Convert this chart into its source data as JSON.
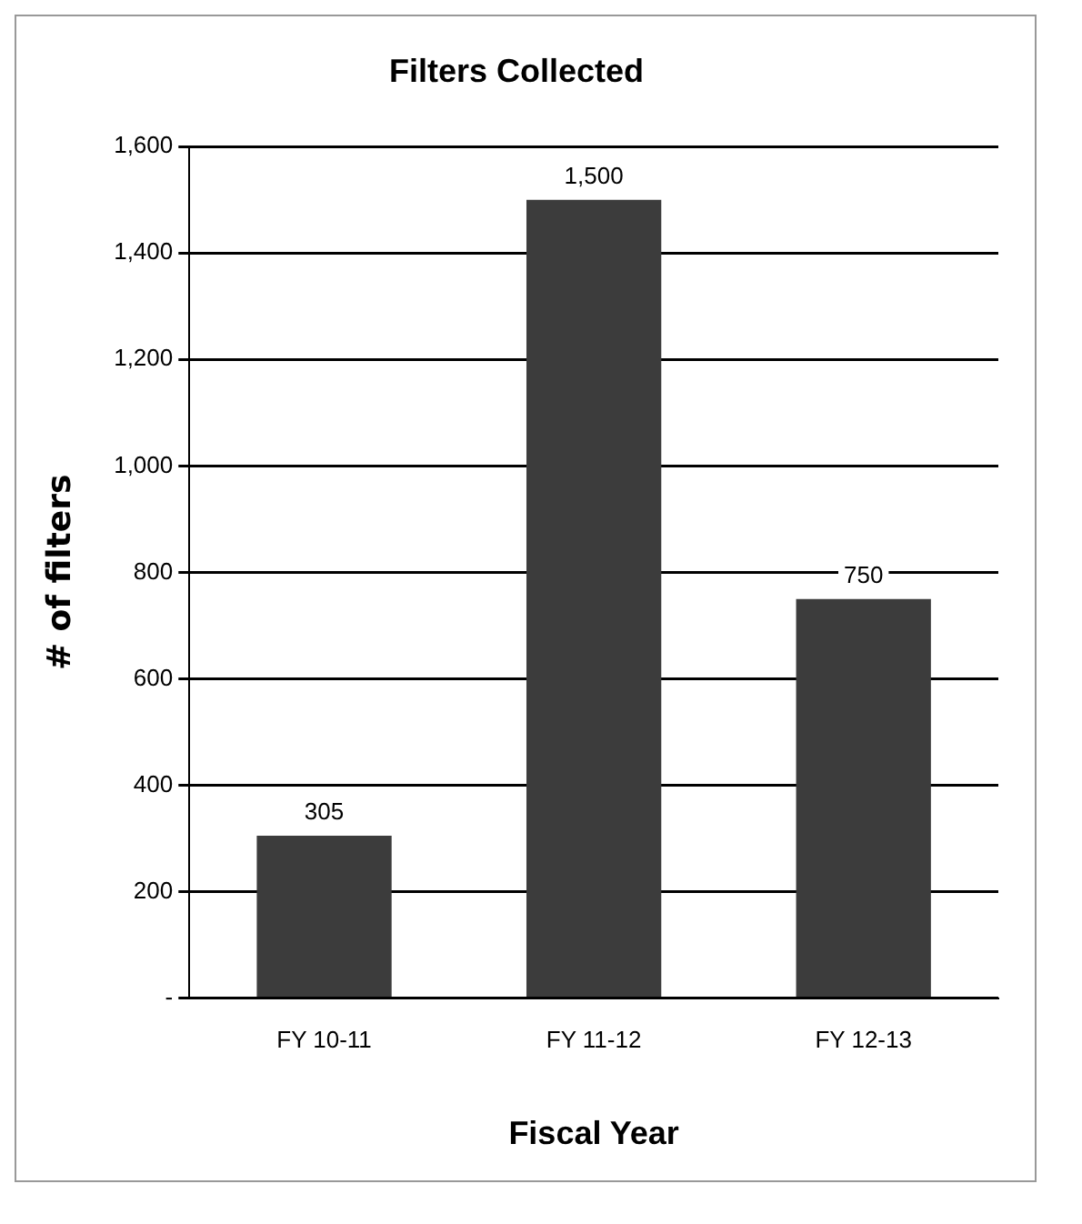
{
  "chart_data": {
    "type": "bar",
    "title": "Filters Collected",
    "xlabel": "Fiscal Year",
    "ylabel": "# of filters",
    "categories": [
      "FY 10-11",
      "FY 11-12",
      "FY 12-13"
    ],
    "values": [
      305,
      1500,
      750
    ],
    "value_labels": [
      "305",
      "1,500",
      "750"
    ],
    "color": "#3c3c3c",
    "ylim": [
      0,
      1600
    ],
    "yticks": [
      {
        "value": 0,
        "label": "-"
      },
      {
        "value": 200,
        "label": "200"
      },
      {
        "value": 400,
        "label": "400"
      },
      {
        "value": 600,
        "label": "600"
      },
      {
        "value": 800,
        "label": "800"
      },
      {
        "value": 1000,
        "label": "1,000"
      },
      {
        "value": 1200,
        "label": "1,200"
      },
      {
        "value": 1400,
        "label": "1,400"
      },
      {
        "value": 1600,
        "label": "1,600"
      }
    ],
    "grid": "y",
    "legend": false
  }
}
